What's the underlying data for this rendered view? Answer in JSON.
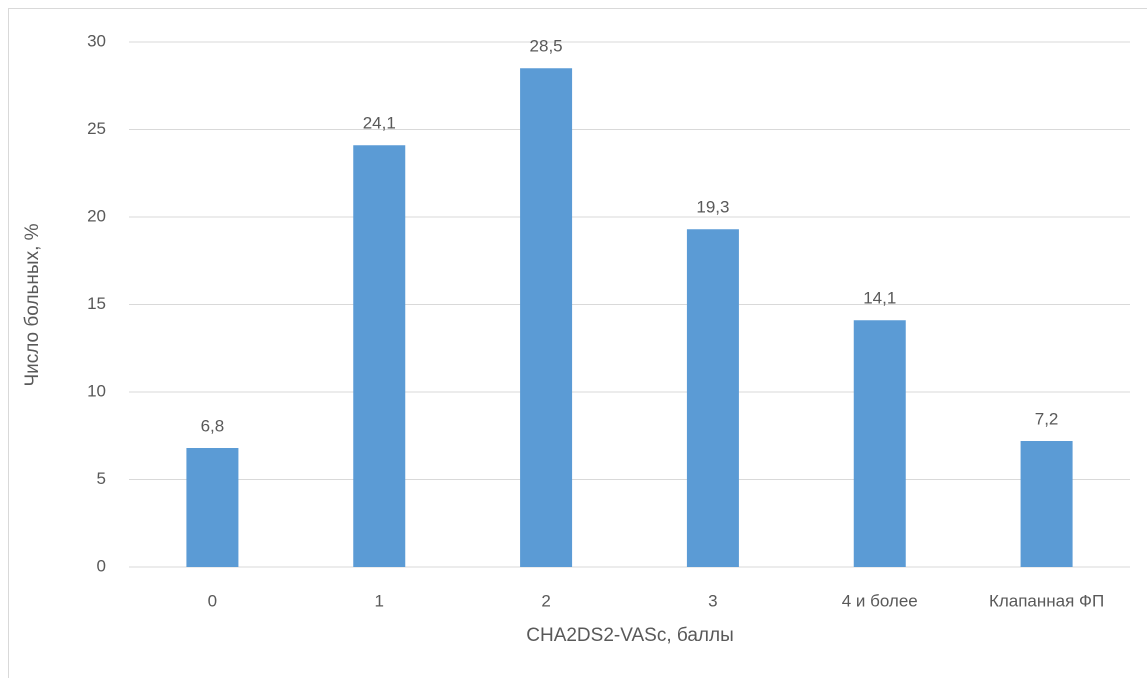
{
  "chart_data": {
    "type": "bar",
    "x_label": "CHA2DS2-VASc, баллы",
    "y_label": "Число больных, %",
    "categories": [
      "0",
      "1",
      "2",
      "3",
      "4 и более",
      "Клапанная ФП"
    ],
    "values": [
      6.8,
      24.1,
      28.5,
      19.3,
      14.1,
      7.2
    ],
    "value_labels": [
      "6,8",
      "24,1",
      "28,5",
      "19,3",
      "14,1",
      "7,2"
    ],
    "color": "#5b9bd5",
    "ylim": [
      0,
      30
    ],
    "yticks": [
      0,
      5,
      10,
      15,
      20,
      25,
      30
    ],
    "grid": true
  }
}
